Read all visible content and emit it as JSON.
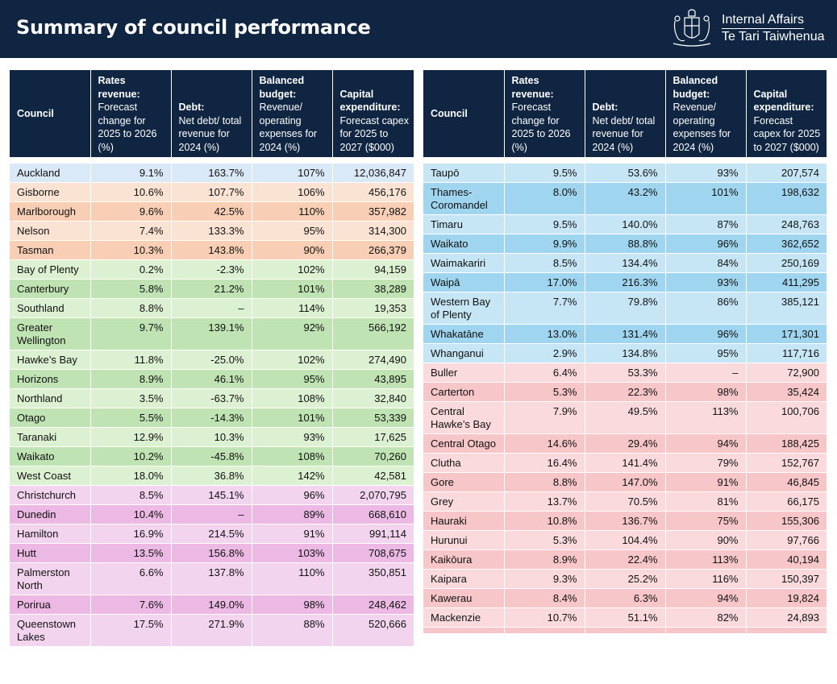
{
  "header": {
    "title": "Summary of council performance",
    "brand_line1": "Internal Affairs",
    "brand_line2": "Te Tari Taiwhenua",
    "bg_color": "#0f2542"
  },
  "columns": [
    {
      "bold": "Council",
      "sub": ""
    },
    {
      "bold": "Rates revenue:",
      "sub": "Forecast change for 2025 to 2026 (%)"
    },
    {
      "bold": "Debt:",
      "sub": "Net debt/ total revenue for 2024 (%)"
    },
    {
      "bold": "Balanced budget:",
      "sub": "Revenue/ operating expenses for 2024 (%)"
    },
    {
      "bold": "Capital expenditure:",
      "sub": "Forecast capex for 2025 to 2027 ($000)"
    }
  ],
  "colors": {
    "metro_dark": "#dae9f7",
    "metro_light": "#dae9f7",
    "prov_dark": "#f8cfb5",
    "prov_light": "#fbe3d3",
    "reg_dark": "#c0e3b3",
    "reg_light": "#dcf0d2",
    "city_dark": "#ebb9e4",
    "city_light": "#f3d4ee",
    "dist_dark": "#9fd5ee",
    "dist_light": "#c6e6f5",
    "rural_dark": "#f7c6c8",
    "rural_light": "#fadadc"
  },
  "left_rows": [
    {
      "council": "Auckland",
      "rates": "9.1%",
      "debt": "163.7%",
      "budget": "107%",
      "capex": "12,036,847",
      "tone": "metro_light"
    },
    {
      "council": "Gisborne",
      "rates": "10.6%",
      "debt": "107.7%",
      "budget": "106%",
      "capex": "456,176",
      "tone": "prov_light"
    },
    {
      "council": "Marlborough",
      "rates": "9.6%",
      "debt": "42.5%",
      "budget": "110%",
      "capex": "357,982",
      "tone": "prov_dark"
    },
    {
      "council": "Nelson",
      "rates": "7.4%",
      "debt": "133.3%",
      "budget": "95%",
      "capex": "314,300",
      "tone": "prov_light"
    },
    {
      "council": "Tasman",
      "rates": "10.3%",
      "debt": "143.8%",
      "budget": "90%",
      "capex": "266,379",
      "tone": "prov_dark"
    },
    {
      "council": "Bay of Plenty",
      "rates": "0.2%",
      "debt": "-2.3%",
      "budget": "102%",
      "capex": "94,159",
      "tone": "reg_light"
    },
    {
      "council": "Canterbury",
      "rates": "5.8%",
      "debt": "21.2%",
      "budget": "101%",
      "capex": "38,289",
      "tone": "reg_dark"
    },
    {
      "council": "Southland",
      "rates": "8.8%",
      "debt": "–",
      "budget": "114%",
      "capex": "19,353",
      "tone": "reg_light"
    },
    {
      "council": "Greater Wellington",
      "rates": "9.7%",
      "debt": "139.1%",
      "budget": "92%",
      "capex": "566,192",
      "tone": "reg_dark"
    },
    {
      "council": "Hawke’s Bay",
      "rates": "11.8%",
      "debt": "-25.0%",
      "budget": "102%",
      "capex": "274,490",
      "tone": "reg_light"
    },
    {
      "council": "Horizons",
      "rates": "8.9%",
      "debt": "46.1%",
      "budget": "95%",
      "capex": "43,895",
      "tone": "reg_dark"
    },
    {
      "council": "Northland",
      "rates": "3.5%",
      "debt": "-63.7%",
      "budget": "108%",
      "capex": "32,840",
      "tone": "reg_light"
    },
    {
      "council": "Otago",
      "rates": "5.5%",
      "debt": "-14.3%",
      "budget": "101%",
      "capex": "53,339",
      "tone": "reg_dark"
    },
    {
      "council": "Taranaki",
      "rates": "12.9%",
      "debt": "10.3%",
      "budget": "93%",
      "capex": "17,625",
      "tone": "reg_light"
    },
    {
      "council": "Waikato",
      "rates": "10.2%",
      "debt": "-45.8%",
      "budget": "108%",
      "capex": "70,260",
      "tone": "reg_dark"
    },
    {
      "council": "West Coast",
      "rates": "18.0%",
      "debt": "36.8%",
      "budget": "142%",
      "capex": "42,581",
      "tone": "reg_light"
    },
    {
      "council": "Christchurch",
      "rates": "8.5%",
      "debt": "145.1%",
      "budget": "96%",
      "capex": "2,070,795",
      "tone": "city_light"
    },
    {
      "council": "Dunedin",
      "rates": "10.4%",
      "debt": "–",
      "budget": "89%",
      "capex": "668,610",
      "tone": "city_dark"
    },
    {
      "council": "Hamilton",
      "rates": "16.9%",
      "debt": "214.5%",
      "budget": "91%",
      "capex": "991,114",
      "tone": "city_light"
    },
    {
      "council": "Hutt",
      "rates": "13.5%",
      "debt": "156.8%",
      "budget": "103%",
      "capex": "708,675",
      "tone": "city_dark"
    },
    {
      "council": "Palmerston North",
      "rates": "6.6%",
      "debt": "137.8%",
      "budget": "110%",
      "capex": "350,851",
      "tone": "city_light"
    },
    {
      "council": "Porirua",
      "rates": "7.6%",
      "debt": "149.0%",
      "budget": "98%",
      "capex": "248,462",
      "tone": "city_dark"
    },
    {
      "council": "Queenstown Lakes",
      "rates": "17.5%",
      "debt": "271.9%",
      "budget": "88%",
      "capex": "520,666",
      "tone": "city_light"
    }
  ],
  "right_rows": [
    {
      "council": "Taupō",
      "rates": "9.5%",
      "debt": "53.6%",
      "budget": "93%",
      "capex": "207,574",
      "tone": "dist_light"
    },
    {
      "council": "Thames-Coromandel",
      "rates": "8.0%",
      "debt": "43.2%",
      "budget": "101%",
      "capex": "198,632",
      "tone": "dist_dark"
    },
    {
      "council": "Timaru",
      "rates": "9.5%",
      "debt": "140.0%",
      "budget": "87%",
      "capex": "248,763",
      "tone": "dist_light"
    },
    {
      "council": "Waikato",
      "rates": "9.9%",
      "debt": "88.8%",
      "budget": "96%",
      "capex": "362,652",
      "tone": "dist_dark"
    },
    {
      "council": "Waimakariri",
      "rates": "8.5%",
      "debt": "134.4%",
      "budget": "84%",
      "capex": "250,169",
      "tone": "dist_light"
    },
    {
      "council": "Waipā",
      "rates": "17.0%",
      "debt": "216.3%",
      "budget": "93%",
      "capex": "411,295",
      "tone": "dist_dark"
    },
    {
      "council": "Western Bay of Plenty",
      "rates": "7.7%",
      "debt": "79.8%",
      "budget": "86%",
      "capex": "385,121",
      "tone": "dist_light"
    },
    {
      "council": "Whakatāne",
      "rates": "13.0%",
      "debt": "131.4%",
      "budget": "96%",
      "capex": "171,301",
      "tone": "dist_dark"
    },
    {
      "council": "Whanganui",
      "rates": "2.9%",
      "debt": "134.8%",
      "budget": "95%",
      "capex": "117,716",
      "tone": "dist_light"
    },
    {
      "council": "Buller",
      "rates": "6.4%",
      "debt": "53.3%",
      "budget": "–",
      "capex": "72,900",
      "tone": "rural_light"
    },
    {
      "council": "Carterton",
      "rates": "5.3%",
      "debt": "22.3%",
      "budget": "98%",
      "capex": "35,424",
      "tone": "rural_dark"
    },
    {
      "council": "Central Hawke’s Bay",
      "rates": "7.9%",
      "debt": "49.5%",
      "budget": "113%",
      "capex": "100,706",
      "tone": "rural_light"
    },
    {
      "council": "Central Otago",
      "rates": "14.6%",
      "debt": "29.4%",
      "budget": "94%",
      "capex": "188,425",
      "tone": "rural_dark"
    },
    {
      "council": "Clutha",
      "rates": "16.4%",
      "debt": "141.4%",
      "budget": "79%",
      "capex": "152,767",
      "tone": "rural_light"
    },
    {
      "council": "Gore",
      "rates": "8.8%",
      "debt": "147.0%",
      "budget": "91%",
      "capex": "46,845",
      "tone": "rural_dark"
    },
    {
      "council": "Grey",
      "rates": "13.7%",
      "debt": "70.5%",
      "budget": "81%",
      "capex": "66,175",
      "tone": "rural_light"
    },
    {
      "council": "Hauraki",
      "rates": "10.8%",
      "debt": "136.7%",
      "budget": "75%",
      "capex": "155,306",
      "tone": "rural_dark"
    },
    {
      "council": "Hurunui",
      "rates": "5.3%",
      "debt": "104.4%",
      "budget": "90%",
      "capex": "97,766",
      "tone": "rural_light"
    },
    {
      "council": "Kaikōura",
      "rates": "8.9%",
      "debt": "22.4%",
      "budget": "113%",
      "capex": "40,194",
      "tone": "rural_dark"
    },
    {
      "council": "Kaipara",
      "rates": "9.3%",
      "debt": "25.2%",
      "budget": "116%",
      "capex": "150,397",
      "tone": "rural_light"
    },
    {
      "council": "Kawerau",
      "rates": "8.4%",
      "debt": "6.3%",
      "budget": "94%",
      "capex": "19,824",
      "tone": "rural_dark"
    },
    {
      "council": "Mackenzie",
      "rates": "10.7%",
      "debt": "51.1%",
      "budget": "82%",
      "capex": "24,893",
      "tone": "rural_light"
    },
    {
      "council": "",
      "rates": "",
      "debt": "",
      "budget": "",
      "capex": "",
      "tone": "rural_dark"
    }
  ]
}
